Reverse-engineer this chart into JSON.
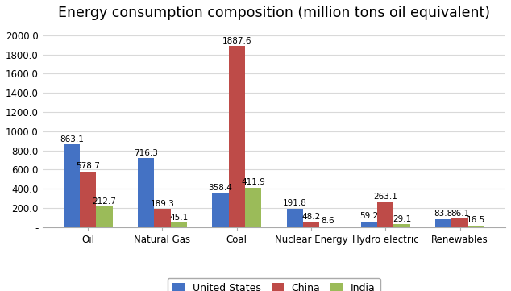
{
  "title": "Energy consumption composition (million tons oil equivalent)",
  "categories": [
    "Oil",
    "Natural Gas",
    "Coal",
    "Nuclear Energy",
    "Hydro electric",
    "Renewables"
  ],
  "series": {
    "United States": [
      863.1,
      716.3,
      358.4,
      191.8,
      59.2,
      83.8
    ],
    "China": [
      578.7,
      189.3,
      1887.6,
      48.2,
      263.1,
      86.1
    ],
    "India": [
      212.7,
      45.1,
      411.9,
      8.6,
      29.1,
      16.5
    ]
  },
  "colors": {
    "United States": "#4472C4",
    "China": "#BE4B48",
    "India": "#9BBB59"
  },
  "legend_labels": [
    "United States",
    "China",
    "India"
  ],
  "ylim": [
    0,
    2100
  ],
  "yticks": [
    0,
    200.0,
    400.0,
    600.0,
    800.0,
    1000.0,
    1200.0,
    1400.0,
    1600.0,
    1800.0,
    2000.0
  ],
  "bar_width": 0.22,
  "title_fontsize": 12.5,
  "tick_fontsize": 8.5,
  "label_fontsize": 7.5,
  "legend_fontsize": 9,
  "background_color": "#FFFFFF",
  "grid_color": "#D9D9D9"
}
